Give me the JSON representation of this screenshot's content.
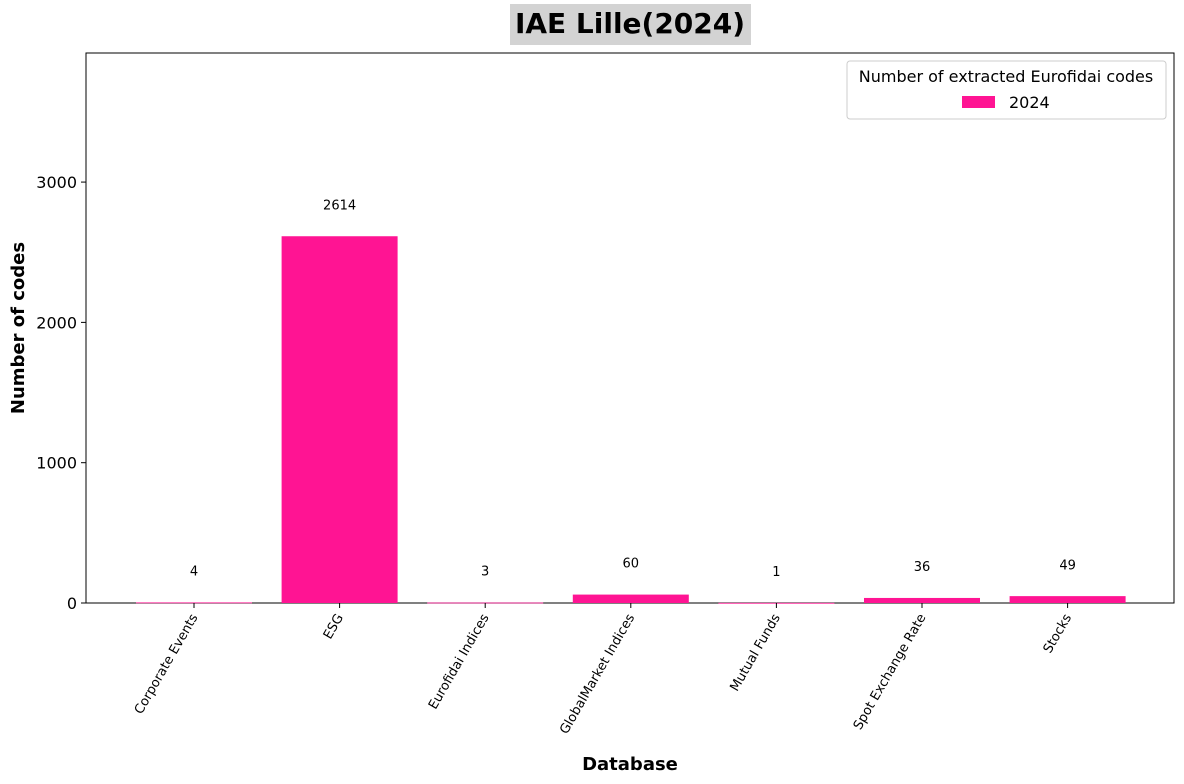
{
  "chart_data": {
    "type": "bar",
    "title": "IAE Lille(2024)",
    "xlabel": "Database",
    "ylabel": "Number of codes",
    "categories": [
      "Corporate Events",
      "ESG",
      "Eurofidai Indices",
      "GlobalMarket Indices",
      "Mutual Funds",
      "Spot Exchange Rate",
      "Stocks"
    ],
    "series": [
      {
        "name": "2024",
        "values": [
          4,
          2614,
          3,
          60,
          1,
          36,
          49
        ],
        "color": "#ff1493"
      }
    ],
    "data_labels": [
      "4",
      "2614",
      "3",
      "60",
      "1",
      "36",
      "49"
    ],
    "ylim": [
      0,
      3920
    ],
    "yticks": [
      0,
      1000,
      2000,
      3000
    ],
    "legend": {
      "title": "Number of extracted Eurofidai codes",
      "placement": "top-right"
    },
    "grid": false
  }
}
